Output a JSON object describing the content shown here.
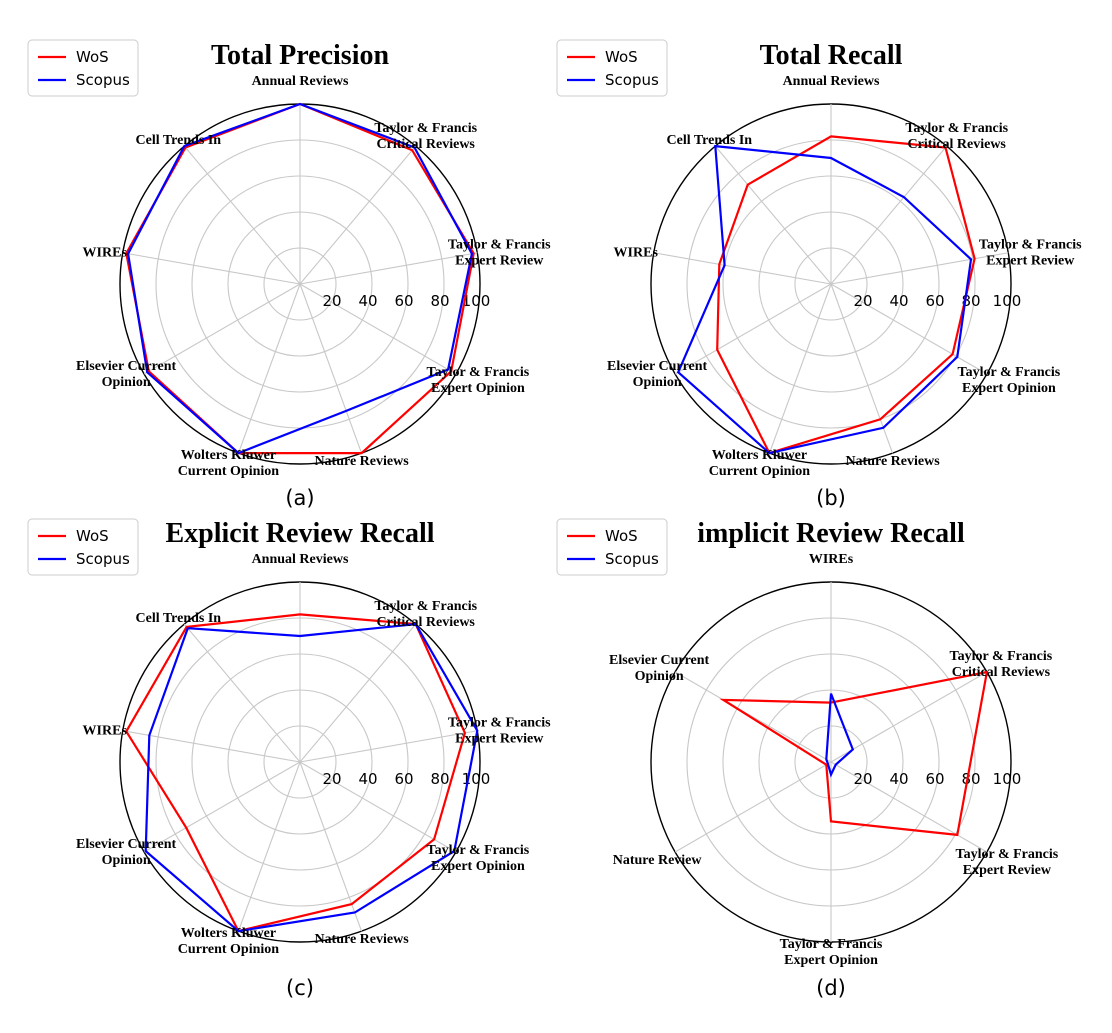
{
  "chart_data": [
    {
      "type": "radar",
      "title": "Total Precision",
      "caption": "(a)",
      "rlim": [
        0,
        100
      ],
      "rticks": [
        20,
        40,
        60,
        80,
        100
      ],
      "grid": true,
      "legend_placement": "top-left",
      "categories": [
        [
          "Annual Reviews"
        ],
        [
          "Taylor & Francis",
          "Critical Reviews"
        ],
        [
          "Taylor & Francis",
          "Expert Review"
        ],
        [
          "Taylor & Francis",
          "Expert Opinion"
        ],
        [
          "Nature Reviews"
        ],
        [
          "Wolters Kluwer",
          "Current Opinion"
        ],
        [
          "Elsevier Current",
          "Opinion"
        ],
        [
          "WIREs"
        ],
        [
          "Cell Trends In"
        ]
      ],
      "series": [
        {
          "name": "WoS",
          "color": "#ff0000",
          "values": [
            100,
            97,
            98,
            97,
            100,
            100,
            97,
            98,
            99
          ]
        },
        {
          "name": "Scopus",
          "color": "#0000ff",
          "values": [
            100,
            99,
            97,
            95,
            75,
            100,
            98,
            97,
            100
          ]
        }
      ]
    },
    {
      "type": "radar",
      "title": "Total Recall",
      "caption": "(b)",
      "rlim": [
        0,
        100
      ],
      "rticks": [
        20,
        40,
        60,
        80,
        100
      ],
      "grid": true,
      "legend_placement": "top-left",
      "categories": [
        [
          "Annual Reviews"
        ],
        [
          "Taylor & Francis",
          "Critical Reviews"
        ],
        [
          "Taylor & Francis",
          "Expert Review"
        ],
        [
          "Taylor & Francis",
          "Expert Opinion"
        ],
        [
          "Nature Reviews"
        ],
        [
          "Wolters Kluwer",
          "Current Opinion"
        ],
        [
          "Elsevier Current",
          "Opinion"
        ],
        [
          "WIREs"
        ],
        [
          "Cell Trends In"
        ]
      ],
      "series": [
        {
          "name": "WoS",
          "color": "#ff0000",
          "values": [
            82,
            99,
            81,
            78,
            80,
            100,
            73,
            63,
            72
          ]
        },
        {
          "name": "Scopus",
          "color": "#0000ff",
          "values": [
            70,
            63,
            79,
            81,
            85,
            100,
            98,
            60,
            100
          ]
        }
      ]
    },
    {
      "type": "radar",
      "title": "Explicit Review Recall",
      "caption": "(c)",
      "rlim": [
        0,
        100
      ],
      "rticks": [
        20,
        40,
        60,
        80,
        100
      ],
      "grid": true,
      "legend_placement": "top-left",
      "categories": [
        [
          "Annual Reviews"
        ],
        [
          "Taylor & Francis",
          "Critical Reviews"
        ],
        [
          "Taylor & Francis",
          "Expert Review"
        ],
        [
          "Taylor & Francis",
          "Expert Opinion"
        ],
        [
          "Nature Reviews"
        ],
        [
          "Wolters Kluwer",
          "Current Opinion"
        ],
        [
          "Elsevier Current",
          "Opinion"
        ],
        [
          "WIREs"
        ],
        [
          "Cell Trends In"
        ]
      ],
      "series": [
        {
          "name": "WoS",
          "color": "#ff0000",
          "values": [
            82,
            100,
            93,
            86,
            84,
            100,
            73,
            98,
            98
          ]
        },
        {
          "name": "Scopus",
          "color": "#0000ff",
          "values": [
            70,
            100,
            100,
            99,
            89,
            100,
            99,
            85,
            97
          ]
        }
      ]
    },
    {
      "type": "radar",
      "title": "implicit Review Recall",
      "caption": "(d)",
      "rlim": [
        0,
        100
      ],
      "rticks": [
        20,
        40,
        60,
        80,
        100
      ],
      "grid": true,
      "legend_placement": "top-left",
      "categories": [
        [
          "WIREs"
        ],
        [
          "Taylor & Francis",
          "Critical Reviews"
        ],
        [
          "Taylor & Francis",
          "Expert Review"
        ],
        [
          "Taylor & Francis",
          "Expert Opinion"
        ],
        [
          "Nature Review"
        ],
        [
          "Elsevier Current",
          "Opinion"
        ]
      ],
      "series": [
        {
          "name": "WoS",
          "color": "#ff0000",
          "values": [
            33,
            100,
            81,
            33,
            3,
            69
          ]
        },
        {
          "name": "Scopus",
          "color": "#0000ff",
          "values": [
            38,
            14,
            3,
            7,
            2,
            3
          ]
        }
      ]
    }
  ]
}
